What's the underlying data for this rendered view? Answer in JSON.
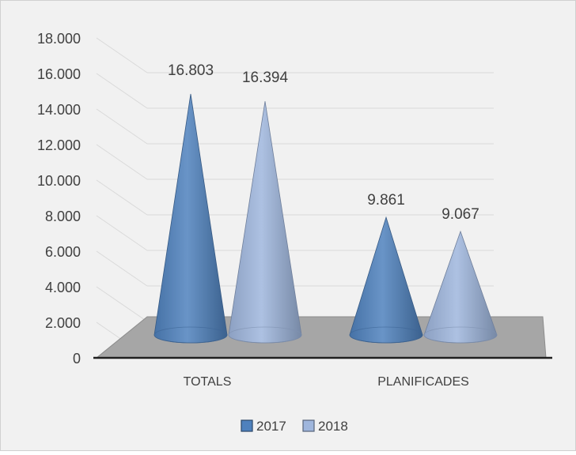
{
  "chart_data": {
    "type": "bar",
    "mark": "cone-3d",
    "categories": [
      "TOTALS",
      "PLANIFICADES"
    ],
    "series": [
      {
        "name": "2017",
        "values": [
          16803,
          9861
        ],
        "color": "#4f81bd",
        "labels": [
          "16.803",
          "9.861"
        ]
      },
      {
        "name": "2018",
        "values": [
          16394,
          9067
        ],
        "color": "#9fb6dd",
        "labels": [
          "16.394",
          "9.067"
        ]
      }
    ],
    "ylim": [
      0,
      18000
    ],
    "yticks": [
      0,
      2000,
      4000,
      6000,
      8000,
      10000,
      12000,
      14000,
      16000,
      18000
    ],
    "ytick_labels": [
      "0",
      "2.000",
      "4.000",
      "6.000",
      "8.000",
      "10.000",
      "12.000",
      "14.000",
      "16.000",
      "18.000"
    ],
    "grid": true,
    "legend": "bottom",
    "background": "#f1f1f1",
    "floor_color": "#a6a6a6"
  }
}
